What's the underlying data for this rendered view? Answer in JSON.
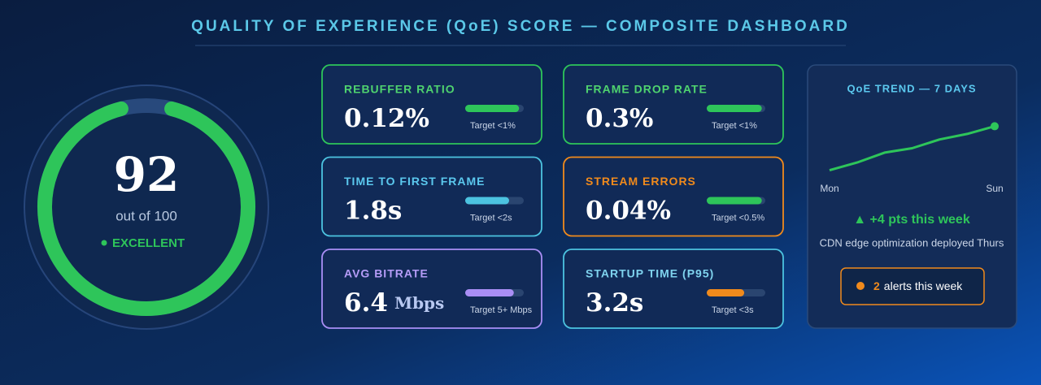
{
  "header": {
    "title": "QUALITY OF EXPERIENCE (QoE) SCORE — COMPOSITE DASHBOARD"
  },
  "gauge": {
    "score": 92,
    "max": 100,
    "caption": "out of 100",
    "status": "EXCELLENT",
    "color": "#2ec55a"
  },
  "metrics": [
    {
      "label": "REBUFFER RATIO",
      "value": "0.12%",
      "target": "Target <1%",
      "progress": 92,
      "color": "#4fd36f",
      "border": "#2ec55a",
      "bar_color": "#2ec55a"
    },
    {
      "label": "FRAME DROP RATE",
      "value": "0.3%",
      "target": "Target <1%",
      "progress": 94,
      "color": "#4fd36f",
      "border": "#2ec55a",
      "bar_color": "#2ec55a"
    },
    {
      "label": "TIME TO FIRST FRAME",
      "value": "1.8s",
      "target": "Target <2s",
      "progress": 75,
      "color": "#5bc8ee",
      "border": "#4cc3e0",
      "bar_color": "#4cc3e0"
    },
    {
      "label": "STREAM ERRORS",
      "value": "0.04%",
      "target": "Target <0.5%",
      "progress": 94,
      "color": "#f08a1c",
      "border": "#f08a1c",
      "bar_color": "#2ec55a"
    },
    {
      "label": "AVG BITRATE",
      "value": "6.4",
      "unit": "Mbps",
      "target": "Target 5+ Mbps",
      "progress": 83,
      "color": "#b59cf7",
      "border": "#a98ef5",
      "bar_color": "#a98ef5"
    },
    {
      "label": "STARTUP TIME (P95)",
      "value": "3.2s",
      "target": "Target <3s",
      "progress": 64,
      "color": "#7fd3ee",
      "border": "#4cc3e0",
      "bar_color": "#f08a1c"
    }
  ],
  "trend": {
    "type": "line",
    "title": "QoE TREND — 7 DAYS",
    "categories": [
      "Mon",
      null,
      null,
      null,
      null,
      null,
      "Sun"
    ],
    "values": [
      88,
      88.7,
      89.6,
      90,
      90.8,
      91.3,
      92
    ],
    "ylim": [
      87.6,
      92.4
    ],
    "color": "#2ec55a",
    "change": "▲ +4 pts this week",
    "note": "CDN edge optimization deployed Thurs",
    "alerts": {
      "count": 2,
      "text": "alerts this week",
      "color": "#f08a1c"
    }
  }
}
